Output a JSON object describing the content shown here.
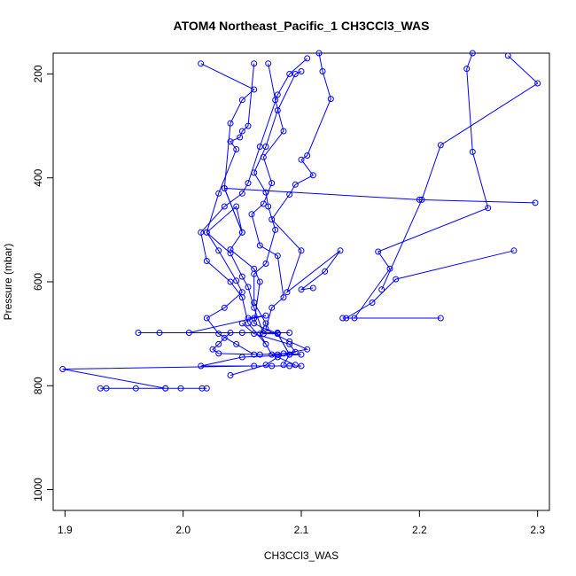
{
  "chart_data": {
    "type": "scatter",
    "title": "ATOM4 Northeast_Pacific_1 CH3CCl3_WAS",
    "xlabel": "CH3CCl3_WAS",
    "ylabel": "Pressure (mbar)",
    "xlim": [
      1.89,
      2.31
    ],
    "ylim": [
      1040,
      160
    ],
    "y_reversed": true,
    "x_ticks": [
      1.9,
      2.0,
      2.1,
      2.2,
      2.3
    ],
    "x_tick_labels": [
      "1.9",
      "2.0",
      "2.1",
      "2.2",
      "2.3"
    ],
    "y_ticks": [
      200,
      400,
      600,
      800,
      1000
    ],
    "y_tick_labels": [
      "200",
      "400",
      "600",
      "800",
      "1000"
    ],
    "grid": false,
    "legend": "none",
    "series_color": "#0000ff",
    "series": [
      {
        "values": [
          {
            "x": 2.016,
            "y": 805
          },
          {
            "x": 2.02,
            "y": 805
          },
          {
            "x": 1.998,
            "y": 805
          },
          {
            "x": 1.985,
            "y": 805
          },
          {
            "x": 1.96,
            "y": 805
          },
          {
            "x": 1.935,
            "y": 805
          },
          {
            "x": 1.93,
            "y": 805
          },
          {
            "x": 1.985,
            "y": 805
          },
          {
            "x": 1.898,
            "y": 768
          },
          {
            "x": 2.06,
            "y": 762
          },
          {
            "x": 2.09,
            "y": 762
          },
          {
            "x": 2.1,
            "y": 762
          },
          {
            "x": 2.075,
            "y": 762
          },
          {
            "x": 2.015,
            "y": 762
          },
          {
            "x": 2.05,
            "y": 745
          },
          {
            "x": 2.1,
            "y": 740
          },
          {
            "x": 2.085,
            "y": 738
          },
          {
            "x": 2.065,
            "y": 740
          },
          {
            "x": 2.03,
            "y": 738
          },
          {
            "x": 2.025,
            "y": 730
          },
          {
            "x": 2.03,
            "y": 720
          },
          {
            "x": 2.035,
            "y": 708
          },
          {
            "x": 2.04,
            "y": 698
          },
          {
            "x": 2.09,
            "y": 698
          },
          {
            "x": 2.08,
            "y": 698
          },
          {
            "x": 2.05,
            "y": 698
          },
          {
            "x": 1.98,
            "y": 698
          },
          {
            "x": 1.962,
            "y": 698
          },
          {
            "x": 2.005,
            "y": 698
          },
          {
            "x": 2.06,
            "y": 670
          },
          {
            "x": 2.07,
            "y": 665
          },
          {
            "x": 2.055,
            "y": 670
          }
        ]
      },
      {
        "values": [
          {
            "x": 2.08,
            "y": 740
          },
          {
            "x": 2.105,
            "y": 730
          },
          {
            "x": 2.09,
            "y": 715
          },
          {
            "x": 2.06,
            "y": 680
          },
          {
            "x": 2.065,
            "y": 600
          },
          {
            "x": 2.06,
            "y": 575
          },
          {
            "x": 2.04,
            "y": 538
          },
          {
            "x": 2.05,
            "y": 505
          },
          {
            "x": 2.035,
            "y": 420
          },
          {
            "x": 2.2,
            "y": 442
          },
          {
            "x": 2.298,
            "y": 448
          }
        ]
      },
      {
        "values": [
          {
            "x": 2.085,
            "y": 760
          },
          {
            "x": 2.09,
            "y": 740
          },
          {
            "x": 2.08,
            "y": 700
          },
          {
            "x": 2.068,
            "y": 700
          },
          {
            "x": 2.06,
            "y": 650
          },
          {
            "x": 2.055,
            "y": 610
          },
          {
            "x": 2.05,
            "y": 590
          },
          {
            "x": 2.04,
            "y": 545
          },
          {
            "x": 2.02,
            "y": 505
          },
          {
            "x": 2.03,
            "y": 430
          },
          {
            "x": 2.045,
            "y": 345
          },
          {
            "x": 2.04,
            "y": 330
          },
          {
            "x": 2.048,
            "y": 322
          },
          {
            "x": 2.05,
            "y": 310
          },
          {
            "x": 2.055,
            "y": 300
          },
          {
            "x": 2.06,
            "y": 180
          }
        ]
      },
      {
        "values": [
          {
            "x": 2.09,
            "y": 740
          },
          {
            "x": 2.08,
            "y": 700
          },
          {
            "x": 2.07,
            "y": 690
          },
          {
            "x": 2.075,
            "y": 650
          },
          {
            "x": 2.085,
            "y": 630
          },
          {
            "x": 2.08,
            "y": 550
          },
          {
            "x": 2.065,
            "y": 530
          },
          {
            "x": 2.058,
            "y": 470
          },
          {
            "x": 2.068,
            "y": 450
          },
          {
            "x": 2.075,
            "y": 410
          },
          {
            "x": 2.068,
            "y": 360
          },
          {
            "x": 2.085,
            "y": 310
          },
          {
            "x": 2.078,
            "y": 250
          },
          {
            "x": 2.072,
            "y": 180
          }
        ]
      },
      {
        "values": [
          {
            "x": 2.095,
            "y": 760
          },
          {
            "x": 2.075,
            "y": 740
          },
          {
            "x": 2.065,
            "y": 700
          },
          {
            "x": 2.07,
            "y": 680
          },
          {
            "x": 2.06,
            "y": 640
          },
          {
            "x": 2.06,
            "y": 585
          },
          {
            "x": 2.07,
            "y": 565
          },
          {
            "x": 2.078,
            "y": 500
          },
          {
            "x": 2.072,
            "y": 455
          },
          {
            "x": 2.07,
            "y": 428
          },
          {
            "x": 2.06,
            "y": 390
          },
          {
            "x": 2.07,
            "y": 340
          },
          {
            "x": 2.08,
            "y": 270
          },
          {
            "x": 2.095,
            "y": 200
          },
          {
            "x": 2.1,
            "y": 195
          }
        ]
      },
      {
        "values": [
          {
            "x": 2.135,
            "y": 670
          },
          {
            "x": 2.218,
            "y": 670
          },
          {
            "x": 2.138,
            "y": 670
          },
          {
            "x": 2.16,
            "y": 640
          },
          {
            "x": 2.18,
            "y": 595
          },
          {
            "x": 2.28,
            "y": 540
          }
        ]
      },
      {
        "values": [
          {
            "x": 2.145,
            "y": 670
          },
          {
            "x": 2.175,
            "y": 575
          },
          {
            "x": 2.165,
            "y": 542
          },
          {
            "x": 2.258,
            "y": 458
          },
          {
            "x": 2.245,
            "y": 350
          },
          {
            "x": 2.24,
            "y": 190
          },
          {
            "x": 2.245,
            "y": 160
          }
        ]
      },
      {
        "values": [
          {
            "x": 2.168,
            "y": 615
          },
          {
            "x": 2.202,
            "y": 442
          },
          {
            "x": 2.218,
            "y": 337
          },
          {
            "x": 2.3,
            "y": 218
          },
          {
            "x": 2.275,
            "y": 165
          }
        ]
      },
      {
        "values": [
          {
            "x": 2.11,
            "y": 612
          },
          {
            "x": 2.1,
            "y": 615
          },
          {
            "x": 2.12,
            "y": 580
          },
          {
            "x": 2.133,
            "y": 540
          },
          {
            "x": 2.088,
            "y": 620
          },
          {
            "x": 2.1,
            "y": 540
          },
          {
            "x": 2.075,
            "y": 480
          },
          {
            "x": 2.09,
            "y": 432
          },
          {
            "x": 2.095,
            "y": 413
          },
          {
            "x": 2.11,
            "y": 395
          },
          {
            "x": 2.1,
            "y": 365
          },
          {
            "x": 2.105,
            "y": 357
          },
          {
            "x": 2.125,
            "y": 248
          },
          {
            "x": 2.118,
            "y": 195
          },
          {
            "x": 2.115,
            "y": 160
          }
        ]
      },
      {
        "values": [
          {
            "x": 2.07,
            "y": 720
          },
          {
            "x": 2.055,
            "y": 680
          },
          {
            "x": 2.05,
            "y": 630
          },
          {
            "x": 2.04,
            "y": 600
          },
          {
            "x": 2.02,
            "y": 560
          },
          {
            "x": 2.015,
            "y": 505
          },
          {
            "x": 2.035,
            "y": 455
          },
          {
            "x": 2.05,
            "y": 430
          },
          {
            "x": 2.055,
            "y": 410
          },
          {
            "x": 2.065,
            "y": 340
          },
          {
            "x": 2.08,
            "y": 240
          },
          {
            "x": 2.09,
            "y": 200
          },
          {
            "x": 2.105,
            "y": 170
          }
        ]
      },
      {
        "values": [
          {
            "x": 2.06,
            "y": 740
          },
          {
            "x": 2.045,
            "y": 720
          },
          {
            "x": 2.03,
            "y": 700
          },
          {
            "x": 2.02,
            "y": 670
          },
          {
            "x": 2.035,
            "y": 650
          },
          {
            "x": 2.05,
            "y": 620
          },
          {
            "x": 2.045,
            "y": 598
          },
          {
            "x": 2.03,
            "y": 540
          },
          {
            "x": 2.02,
            "y": 505
          },
          {
            "x": 2.045,
            "y": 455
          },
          {
            "x": 2.05,
            "y": 505
          },
          {
            "x": 2.035,
            "y": 420
          },
          {
            "x": 2.04,
            "y": 295
          },
          {
            "x": 2.05,
            "y": 250
          },
          {
            "x": 2.06,
            "y": 230
          },
          {
            "x": 2.015,
            "y": 180
          }
        ]
      },
      {
        "values": [
          {
            "x": 2.04,
            "y": 780
          },
          {
            "x": 2.07,
            "y": 760
          },
          {
            "x": 2.08,
            "y": 745
          },
          {
            "x": 2.095,
            "y": 735
          },
          {
            "x": 2.09,
            "y": 720
          },
          {
            "x": 2.06,
            "y": 700
          },
          {
            "x": 2.05,
            "y": 680
          }
        ]
      }
    ]
  }
}
